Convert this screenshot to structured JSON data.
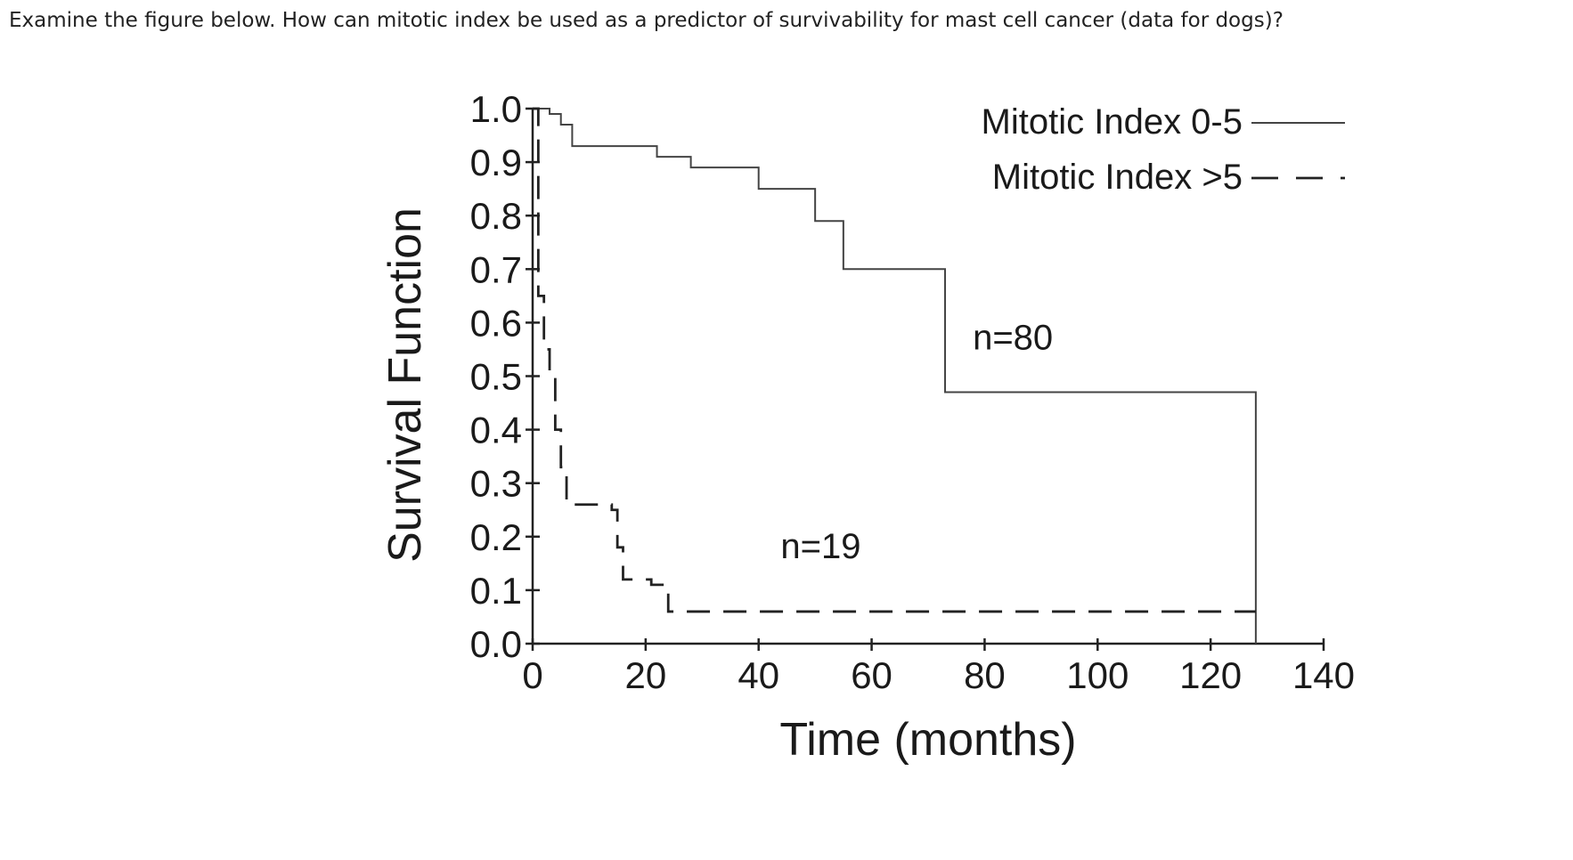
{
  "question": "Examine the figure below. How can mitotic index be used as a predictor of survivability for mast cell cancer (data for dogs)?",
  "chart_data": {
    "type": "line",
    "step": true,
    "xlabel": "Time (months)",
    "ylabel": "Survival Function",
    "xlim": [
      0,
      140
    ],
    "ylim": [
      0,
      1.0
    ],
    "x_ticks": [
      0,
      20,
      40,
      60,
      80,
      100,
      120,
      140
    ],
    "y_ticks": [
      0.0,
      0.1,
      0.2,
      0.3,
      0.4,
      0.5,
      0.6,
      0.7,
      0.8,
      0.9,
      1.0
    ],
    "x_tick_labels": [
      "0",
      "20",
      "40",
      "60",
      "80",
      "100",
      "120",
      "140"
    ],
    "y_tick_labels": [
      "0.0",
      "0.1",
      "0.2",
      "0.3",
      "0.4",
      "0.5",
      "0.6",
      "0.7",
      "0.8",
      "0.9",
      "1.0"
    ],
    "grid": false,
    "legend_position": "top-right",
    "series": [
      {
        "name": "Mitotic Index 0-5",
        "line_style": "solid",
        "color": "#444444",
        "annotation": "n=80",
        "annotation_at": [
          85,
          0.55
        ],
        "points": [
          [
            0,
            1.0
          ],
          [
            3,
            0.99
          ],
          [
            5,
            0.97
          ],
          [
            7,
            0.93
          ],
          [
            22,
            0.91
          ],
          [
            28,
            0.89
          ],
          [
            40,
            0.85
          ],
          [
            50,
            0.79
          ],
          [
            55,
            0.7
          ],
          [
            73,
            0.47
          ],
          [
            128,
            0.47
          ],
          [
            128,
            0.0
          ]
        ]
      },
      {
        "name": "Mitotic Index >5",
        "line_style": "dashed",
        "color": "#222222",
        "annotation": "n=19",
        "annotation_at": [
          51,
          0.16
        ],
        "points": [
          [
            0,
            1.0
          ],
          [
            1,
            0.93
          ],
          [
            1,
            0.65
          ],
          [
            2,
            0.55
          ],
          [
            3,
            0.5
          ],
          [
            4,
            0.4
          ],
          [
            5,
            0.33
          ],
          [
            6,
            0.26
          ],
          [
            14,
            0.25
          ],
          [
            15,
            0.18
          ],
          [
            16,
            0.12
          ],
          [
            21,
            0.11
          ],
          [
            24,
            0.06
          ],
          [
            128,
            0.06
          ]
        ]
      }
    ]
  }
}
